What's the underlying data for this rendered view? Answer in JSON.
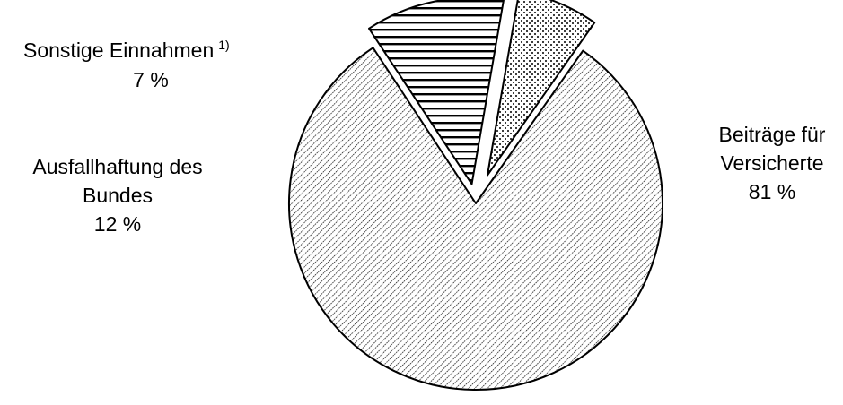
{
  "chart_data": {
    "type": "pie",
    "title": "",
    "slices": [
      {
        "label_lines": [
          "Beiträge für",
          "Versicherte"
        ],
        "value": 81,
        "value_label": "81 %",
        "pattern": "diagonal-hatch"
      },
      {
        "label_lines": [
          "Ausfallhaftung des",
          "Bundes"
        ],
        "value": 12,
        "value_label": "12 %",
        "pattern": "horizontal-lines",
        "exploded": true
      },
      {
        "label_lines": [
          "Sonstige Einnahmen"
        ],
        "footnote": "1)",
        "value": 7,
        "value_label": "7 %",
        "pattern": "dots",
        "exploded": true
      }
    ],
    "colors": {
      "stroke": "#000000",
      "background": "#ffffff"
    }
  }
}
